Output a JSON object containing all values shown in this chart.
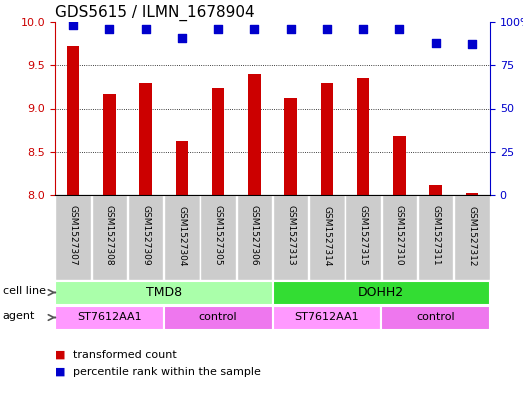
{
  "title": "GDS5615 / ILMN_1678904",
  "samples": [
    "GSM1527307",
    "GSM1527308",
    "GSM1527309",
    "GSM1527304",
    "GSM1527305",
    "GSM1527306",
    "GSM1527313",
    "GSM1527314",
    "GSM1527315",
    "GSM1527310",
    "GSM1527311",
    "GSM1527312"
  ],
  "transformed_counts": [
    9.72,
    9.17,
    9.3,
    8.62,
    9.24,
    9.4,
    9.12,
    9.29,
    9.35,
    8.68,
    8.12,
    8.02
  ],
  "percentile_ranks": [
    98,
    96,
    96,
    91,
    96,
    96,
    96,
    96,
    96,
    96,
    88,
    87
  ],
  "ylim_left": [
    8.0,
    10.0
  ],
  "ylim_right": [
    0,
    100
  ],
  "yticks_left": [
    8.0,
    8.5,
    9.0,
    9.5,
    10.0
  ],
  "yticks_right": [
    0,
    25,
    50,
    75,
    100
  ],
  "bar_color": "#CC0000",
  "dot_color": "#0000CC",
  "cell_line_groups": [
    {
      "label": "TMD8",
      "start": 0,
      "end": 6,
      "color": "#AAFFAA"
    },
    {
      "label": "DOHH2",
      "start": 6,
      "end": 12,
      "color": "#33DD33"
    }
  ],
  "agent_groups": [
    {
      "label": "ST7612AA1",
      "start": 0,
      "end": 3,
      "color": "#FF99FF"
    },
    {
      "label": "control",
      "start": 3,
      "end": 6,
      "color": "#EE77EE"
    },
    {
      "label": "ST7612AA1",
      "start": 6,
      "end": 9,
      "color": "#FF99FF"
    },
    {
      "label": "control",
      "start": 9,
      "end": 12,
      "color": "#EE77EE"
    }
  ],
  "legend_red_label": "transformed count",
  "legend_blue_label": "percentile rank within the sample",
  "tick_color_left": "#CC0000",
  "tick_color_right": "#0000CC",
  "bar_width": 0.35,
  "dot_size": 35,
  "sample_bg_color": "#CCCCCC",
  "title_fontsize": 11,
  "cell_line_label": "cell line",
  "agent_label": "agent"
}
